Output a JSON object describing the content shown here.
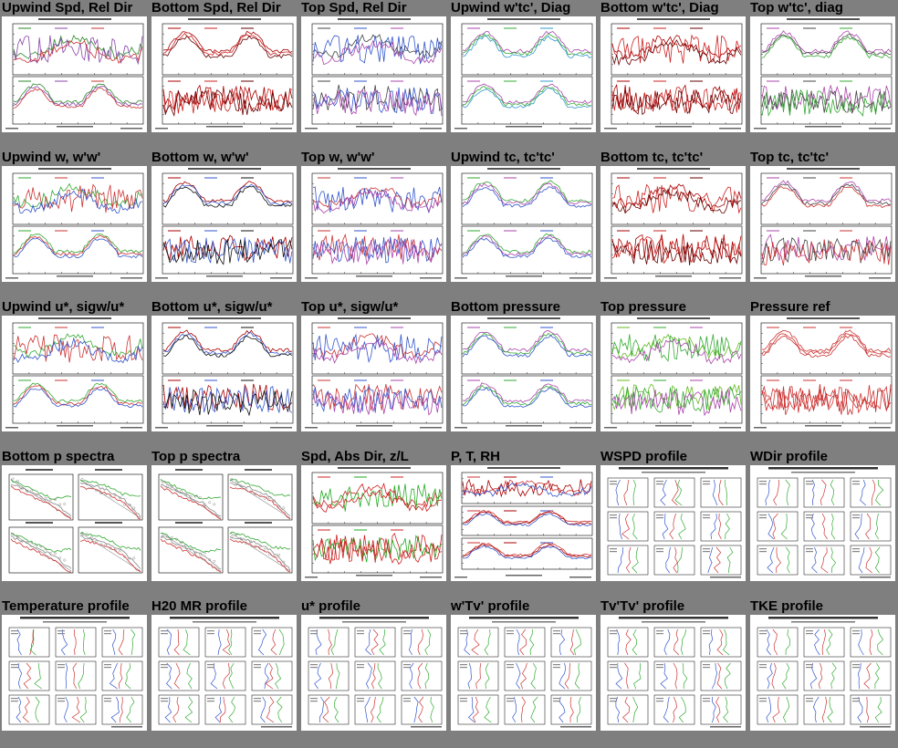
{
  "page": {
    "rows": [
      [
        {
          "title": "Upwind Spd, Rel Dir",
          "kind": "two-panel",
          "colors": [
            "#2a8a2a",
            "#8844aa",
            "#cc3333"
          ]
        },
        {
          "title": "Bottom Spd, Rel Dir",
          "kind": "two-panel",
          "colors": [
            "#aa0000",
            "#cc2222",
            "#660000"
          ]
        },
        {
          "title": "Top Spd, Rel Dir",
          "kind": "two-panel",
          "colors": [
            "#444444",
            "#3355cc",
            "#aa44aa"
          ]
        },
        {
          "title": "Upwind w'tc', Diag",
          "kind": "two-panel",
          "colors": [
            "#aa44aa",
            "#33aa33",
            "#3399cc"
          ]
        },
        {
          "title": "Bottom w'tc', Diag",
          "kind": "two-panel",
          "colors": [
            "#aa0000",
            "#cc2222",
            "#660000"
          ]
        },
        {
          "title": "Top w'tc', diag",
          "kind": "two-panel",
          "colors": [
            "#aa44aa",
            "#444444",
            "#33aa33"
          ]
        }
      ],
      [
        {
          "title": "Upwind w, w'w'",
          "kind": "two-panel",
          "colors": [
            "#33aa33",
            "#cc3333",
            "#3355cc"
          ]
        },
        {
          "title": "Bottom w, w'w'",
          "kind": "two-panel",
          "colors": [
            "#aa0000",
            "#3355cc",
            "#111111"
          ]
        },
        {
          "title": "Top w, w'w'",
          "kind": "two-panel",
          "colors": [
            "#cc3333",
            "#3355cc",
            "#aa44aa"
          ]
        },
        {
          "title": "Upwind tc, tc'tc'",
          "kind": "two-panel",
          "colors": [
            "#33aa33",
            "#aa44aa",
            "#3355cc"
          ]
        },
        {
          "title": "Bottom tc, tc'tc'",
          "kind": "two-panel",
          "colors": [
            "#aa0000",
            "#cc2222",
            "#660000"
          ]
        },
        {
          "title": "Top tc, tc'tc'",
          "kind": "two-panel",
          "colors": [
            "#aa44aa",
            "#444444",
            "#cc3333"
          ]
        }
      ],
      [
        {
          "title": "Upwind u*, sigw/u*",
          "kind": "two-panel",
          "colors": [
            "#33aa33",
            "#cc3333",
            "#3355cc"
          ]
        },
        {
          "title": "Bottom u*, sigw/u*",
          "kind": "two-panel",
          "colors": [
            "#aa0000",
            "#3355cc",
            "#111111"
          ]
        },
        {
          "title": "Top u*, sigw/u*",
          "kind": "two-panel",
          "colors": [
            "#cc3333",
            "#3355cc",
            "#aa44aa"
          ]
        },
        {
          "title": "Bottom pressure",
          "kind": "two-panel",
          "colors": [
            "#aa44aa",
            "#33aa33",
            "#3355cc"
          ]
        },
        {
          "title": "Top pressure",
          "kind": "two-panel",
          "colors": [
            "#66bb22",
            "#33aa33",
            "#aa44aa"
          ]
        },
        {
          "title": "Pressure ref",
          "kind": "two-panel",
          "colors": [
            "#cc3333",
            "#cc3333",
            "#cc3333"
          ]
        }
      ],
      [
        {
          "title": "Bottom p spectra",
          "kind": "spectra",
          "colors": [
            "#33aa33",
            "#888888",
            "#cc3333"
          ]
        },
        {
          "title": "Top p spectra",
          "kind": "spectra",
          "colors": [
            "#33aa33",
            "#888888",
            "#cc3333"
          ]
        },
        {
          "title": "Spd, Abs Dir, z/L",
          "kind": "two-panel",
          "colors": [
            "#cc2222",
            "#22aa22",
            "#cc2222"
          ]
        },
        {
          "title": "P, T, RH",
          "kind": "three-panel",
          "colors": [
            "#cc3333",
            "#aa0000",
            "#3355cc"
          ]
        },
        {
          "title": "WSPD profile",
          "kind": "profile",
          "colors": [
            "#3355cc",
            "#cc3333",
            "#33aa33"
          ]
        },
        {
          "title": "WDir profile",
          "kind": "profile",
          "colors": [
            "#3355cc",
            "#cc3333",
            "#33aa33"
          ]
        }
      ],
      [
        {
          "title": "Temperature profile",
          "kind": "profile",
          "colors": [
            "#3355cc",
            "#cc3333",
            "#33aa33"
          ]
        },
        {
          "title": "H20 MR profile",
          "kind": "profile",
          "colors": [
            "#3355cc",
            "#cc3333",
            "#33aa33"
          ]
        },
        {
          "title": "u* profile",
          "kind": "profile",
          "colors": [
            "#3355cc",
            "#cc3333",
            "#33aa33"
          ]
        },
        {
          "title": "w'Tv' profile",
          "kind": "profile",
          "colors": [
            "#3355cc",
            "#cc3333",
            "#33aa33"
          ]
        },
        {
          "title": "Tv'Tv' profile",
          "kind": "profile",
          "colors": [
            "#3355cc",
            "#cc3333",
            "#33aa33"
          ]
        },
        {
          "title": "TKE profile",
          "kind": "profile",
          "colors": [
            "#3355cc",
            "#cc3333",
            "#33aa33"
          ]
        }
      ]
    ]
  }
}
